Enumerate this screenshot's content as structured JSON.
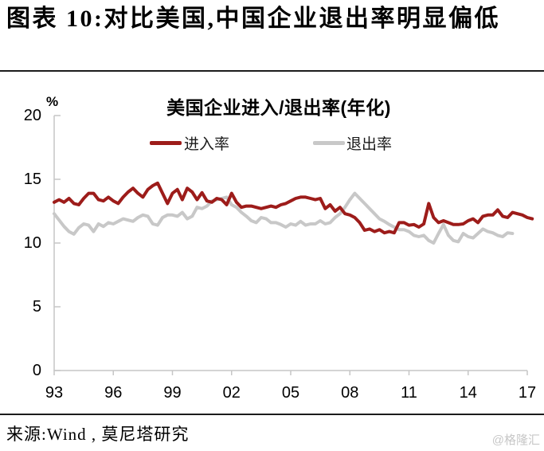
{
  "header": {
    "title": "图表 10:对比美国,中国企业退出率明显偏低"
  },
  "chart": {
    "title": "美国企业进入/退出率(年化)",
    "unit_label": "%"
  },
  "chart_data": {
    "type": "line",
    "title": "美国企业进入/退出率(年化)",
    "ylabel": "%",
    "ylim": [
      0,
      20
    ],
    "yticks": [
      0,
      5,
      10,
      15,
      20
    ],
    "xticks": [
      "93",
      "96",
      "99",
      "02",
      "05",
      "08",
      "11",
      "14",
      "17"
    ],
    "xtick_years": [
      1993,
      1996,
      1999,
      2002,
      2005,
      2008,
      2011,
      2014,
      2017
    ],
    "x_start": 1993.0,
    "x_step": 0.25,
    "x_unit": "year (quarterly data)",
    "grid": false,
    "legend_position": "top-center",
    "axis_color": "#c6c6c6",
    "series": [
      {
        "name": "进入率",
        "color": "#9d1c1a",
        "values": [
          13.2,
          13.4,
          13.2,
          13.5,
          13.1,
          13.0,
          13.5,
          13.9,
          13.9,
          13.4,
          13.3,
          13.6,
          13.3,
          13.1,
          13.6,
          14.0,
          14.3,
          13.9,
          13.6,
          14.2,
          14.5,
          14.7,
          13.9,
          13.1,
          13.9,
          14.2,
          13.4,
          14.3,
          14.0,
          13.4,
          13.95,
          13.3,
          13.2,
          13.5,
          13.4,
          13.0,
          13.9,
          13.2,
          12.8,
          12.9,
          12.9,
          12.8,
          12.7,
          12.8,
          12.9,
          12.8,
          13.0,
          13.1,
          13.3,
          13.5,
          13.6,
          13.6,
          13.5,
          13.4,
          13.5,
          12.7,
          13.0,
          12.5,
          12.8,
          12.3,
          12.2,
          12.0,
          11.6,
          11.0,
          11.1,
          10.9,
          11.05,
          10.8,
          10.9,
          10.8,
          11.6,
          11.6,
          11.4,
          11.45,
          11.25,
          11.5,
          13.1,
          12.0,
          11.6,
          11.75,
          11.6,
          11.45,
          11.45,
          11.5,
          11.75,
          11.9,
          11.6,
          12.1,
          12.2,
          12.2,
          12.6,
          12.1,
          12.0,
          12.4,
          12.3,
          12.2,
          12.0,
          11.9
        ]
      },
      {
        "name": "退出率",
        "color": "#c8c8c8",
        "values": [
          12.3,
          11.8,
          11.3,
          10.9,
          10.7,
          11.2,
          11.5,
          11.4,
          10.9,
          11.5,
          11.3,
          11.6,
          11.5,
          11.7,
          11.9,
          11.8,
          11.7,
          12.0,
          12.2,
          12.1,
          11.5,
          11.4,
          12.0,
          12.2,
          12.2,
          12.1,
          12.4,
          11.9,
          12.1,
          12.8,
          12.7,
          12.9,
          13.3,
          13.4,
          13.5,
          13.6,
          13.0,
          12.8,
          12.4,
          12.1,
          11.75,
          11.6,
          12.0,
          11.9,
          11.6,
          11.6,
          11.45,
          11.25,
          11.5,
          11.4,
          11.7,
          11.4,
          11.5,
          11.5,
          11.75,
          11.5,
          11.6,
          12.0,
          12.3,
          12.8,
          13.4,
          13.9,
          13.5,
          13.1,
          12.7,
          12.3,
          11.9,
          11.7,
          11.45,
          11.25,
          11.05,
          11.05,
          10.9,
          10.6,
          10.5,
          10.6,
          10.2,
          10.0,
          10.75,
          11.45,
          10.6,
          10.2,
          10.1,
          10.75,
          10.5,
          10.4,
          10.75,
          11.1,
          10.9,
          10.8,
          10.6,
          10.5,
          10.8,
          10.75
        ]
      }
    ]
  },
  "footer": {
    "source": "来源:Wind , 莫尼塔研究",
    "watermark": "@格隆汇"
  }
}
